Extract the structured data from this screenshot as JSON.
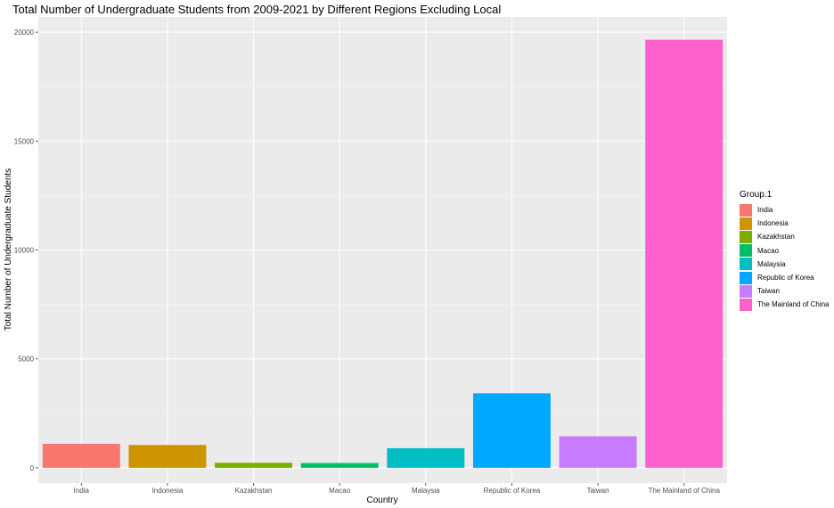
{
  "chart_data": {
    "type": "bar",
    "title": "Total Number of Undergraduate Students from 2009-2021 by Different Regions Excluding Local",
    "xlabel": "Country",
    "ylabel": "Total Number of Undergraduate Students",
    "ylim": [
      -700,
      20700
    ],
    "yticks": [
      0,
      5000,
      10000,
      15000,
      20000
    ],
    "grid": true,
    "legend_position": "right",
    "legend_title": "Group.1",
    "categories": [
      "India",
      "Indonesia",
      "Kazakhstan",
      "Macao",
      "Malaysia",
      "Republic of Korea",
      "Taiwan",
      "The Mainland of China"
    ],
    "values": [
      1100,
      1050,
      230,
      220,
      900,
      3420,
      1450,
      19650
    ],
    "colors": [
      "#F8766D",
      "#CD9600",
      "#7CAE00",
      "#00BE67",
      "#00BFC4",
      "#00A9FF",
      "#C77CFF",
      "#FF61CC"
    ]
  }
}
